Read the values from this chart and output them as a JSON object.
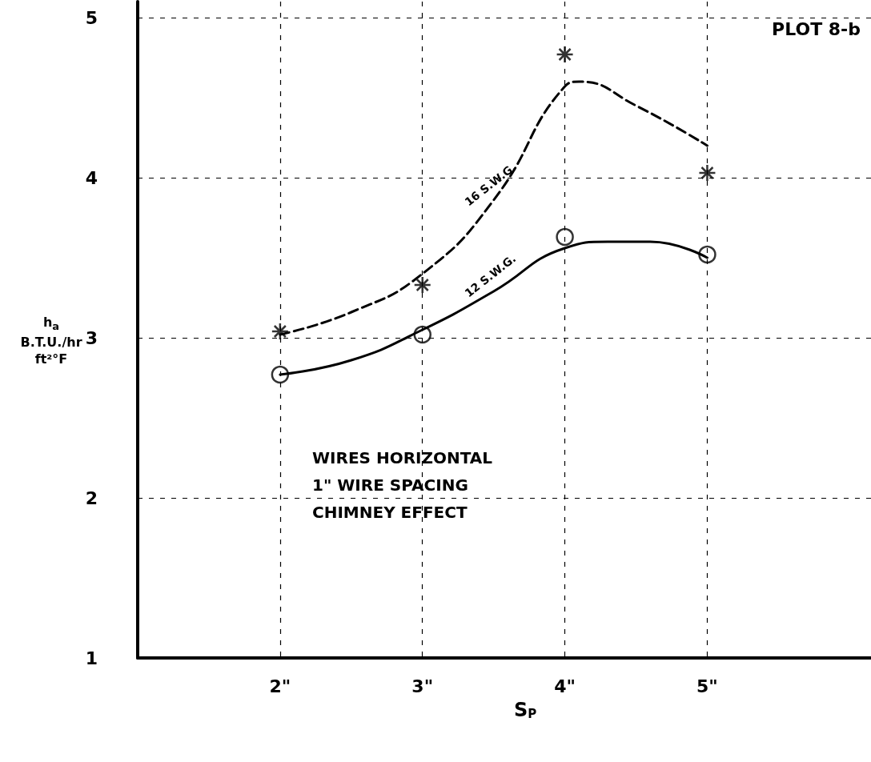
{
  "chart_data": {
    "type": "line",
    "title": "PLOT 8-b",
    "xlabel": "S$_{P}$",
    "ylabel": "h$_{a}$\nB.T.U./hr ft²°F",
    "annotations": [
      "WIRES HORIZONTAL\n1\" WIRE SPACING\nCHIMNEY EFFECT"
    ],
    "xlim": [
      1,
      6.15
    ],
    "ylim": [
      1,
      5.1
    ],
    "xticks": [
      {
        "value": 2,
        "label": "2\""
      },
      {
        "value": 3,
        "label": "3\""
      },
      {
        "value": 4,
        "label": "4\""
      },
      {
        "value": 5,
        "label": "5\""
      }
    ],
    "yticks": [
      1,
      2,
      3,
      4,
      5
    ],
    "grid": true,
    "legend": false,
    "series": [
      {
        "type": "scatter",
        "marker": "cross",
        "color": "#000000",
        "x": [
          2,
          3,
          4,
          5
        ],
        "values": [
          3.04,
          3.33,
          4.77,
          4.03
        ]
      },
      {
        "type": "scatter",
        "marker": "circle",
        "color": "#000000",
        "x": [
          2,
          3,
          4,
          5
        ],
        "values": [
          2.77,
          3.02,
          3.63,
          3.52
        ]
      },
      {
        "name": "16 S.W.G.",
        "line_style": "dashed",
        "color": "#000000",
        "x": [
          2,
          2.5,
          3,
          3.5,
          4,
          4.1,
          4.5,
          5
        ],
        "values": [
          3.02,
          3.16,
          3.4,
          3.86,
          4.57,
          4.6,
          4.45,
          4.2
        ]
      },
      {
        "name": "12 S.W.G.",
        "line_style": "solid",
        "color": "#000000",
        "x": [
          2,
          2.5,
          3,
          3.5,
          4,
          4.3,
          4.6,
          5
        ],
        "values": [
          2.77,
          2.86,
          3.05,
          3.29,
          3.56,
          3.6,
          3.6,
          3.5
        ]
      }
    ]
  }
}
